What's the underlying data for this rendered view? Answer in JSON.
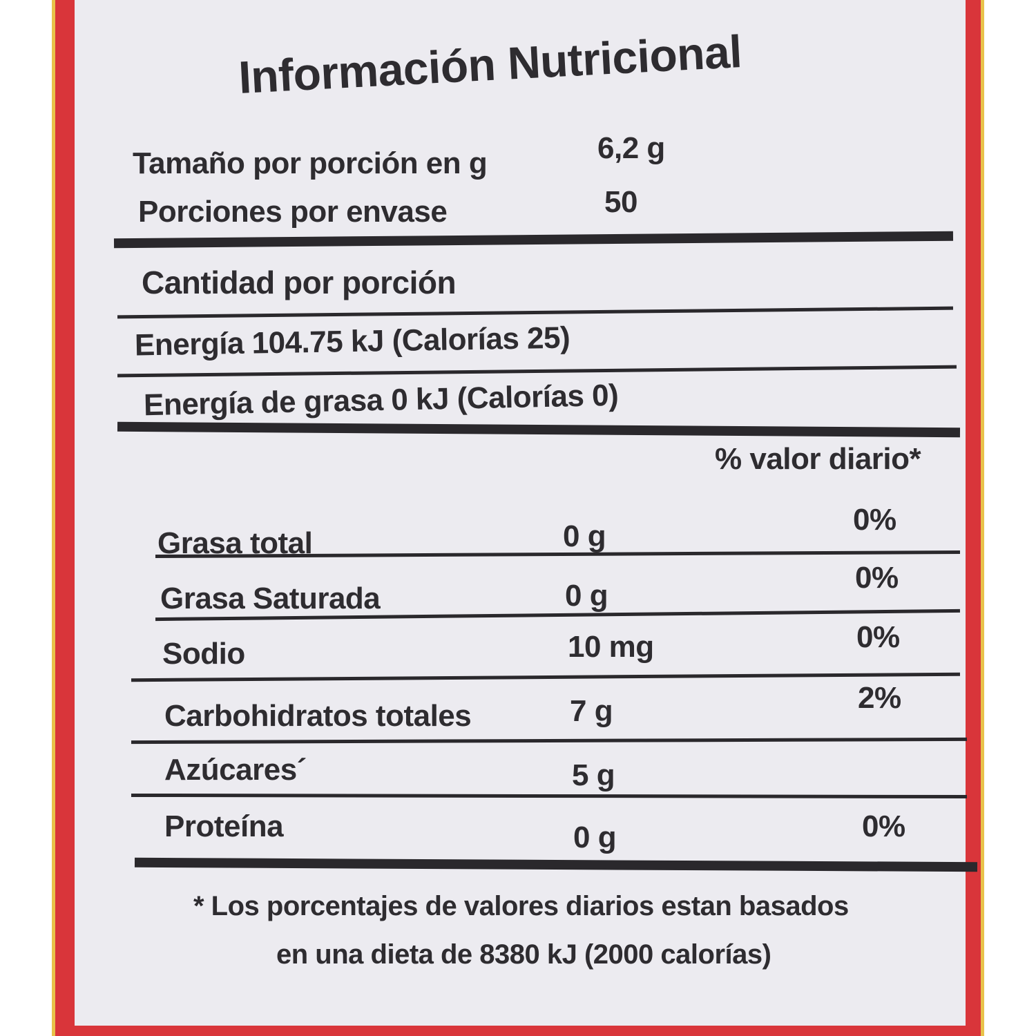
{
  "title": "Información Nutricional",
  "serving_size_label": "Tamaño por porción en g",
  "serving_size_value": "6,2 g",
  "servings_label": "Porciones por envase",
  "servings_value": "50",
  "amount_per_serving": "Cantidad por porción",
  "energy": "Energía 104.75 kJ (Calorías 25)",
  "energy_fat": "Energía de grasa 0 kJ (Calorías 0)",
  "dv_header": "% valor diario*",
  "nutrients": [
    {
      "name": "Grasa total",
      "amount": "0 g",
      "dv": "0%"
    },
    {
      "name": "Grasa Saturada",
      "amount": "0 g",
      "dv": "0%"
    },
    {
      "name": "Sodio",
      "amount": "10 mg",
      "dv": "0%"
    },
    {
      "name": "Carbohidratos totales",
      "amount": "7 g",
      "dv": "2%"
    },
    {
      "name": "Azúcares´",
      "amount": "5 g",
      "dv": ""
    },
    {
      "name": "Proteína",
      "amount": "0 g",
      "dv": "0%"
    }
  ],
  "footnote_line1": "* Los porcentajes de valores diarios estan basados",
  "footnote_line2": "en una dieta de 8380 kJ (2000 calorías)",
  "colors": {
    "border_red": "#d9353a",
    "border_yellow": "#e8c24a",
    "panel": "#ecebf0",
    "text": "#2e2c30"
  }
}
